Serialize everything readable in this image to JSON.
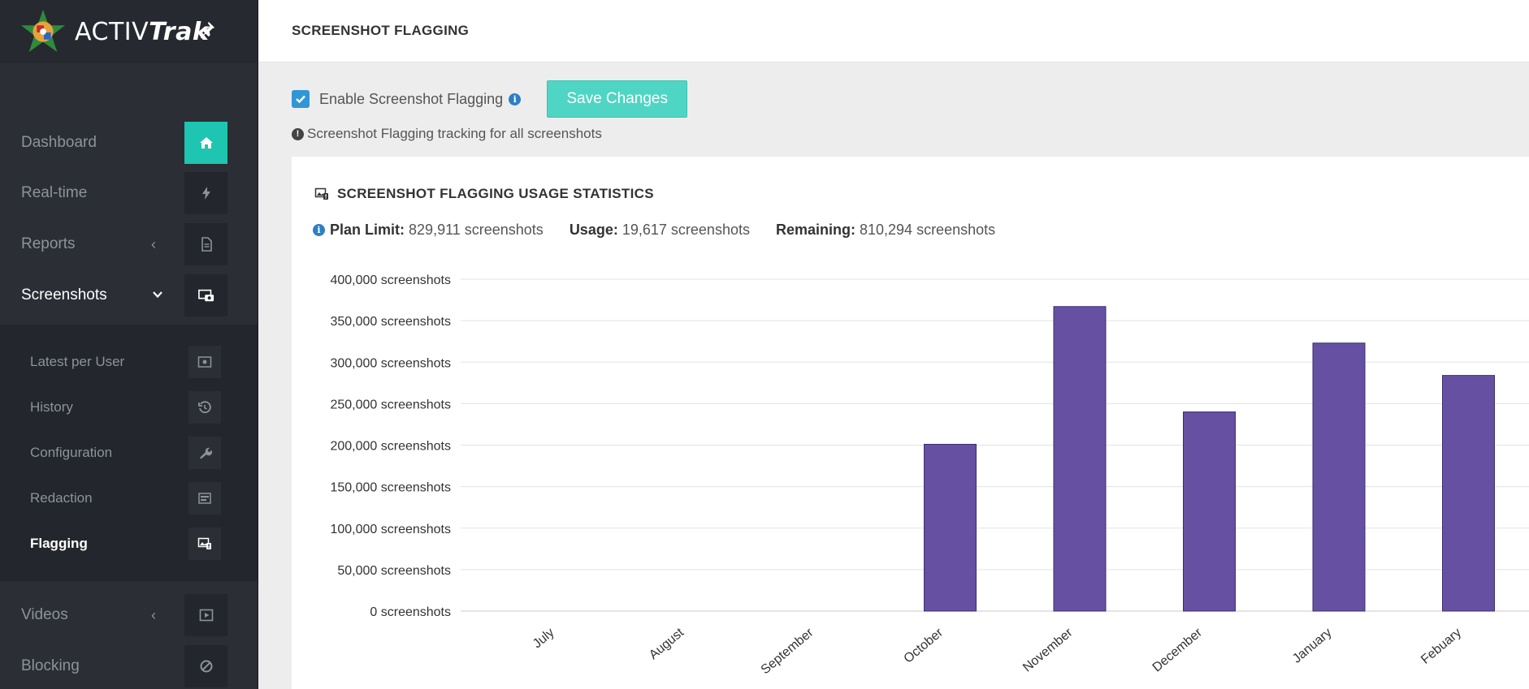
{
  "app": {
    "brand_plain": "ACTIV",
    "brand_italic": "Trak"
  },
  "sidebar": {
    "items": [
      {
        "label": "Dashboard",
        "icon": "home-icon"
      },
      {
        "label": "Real-time",
        "icon": "bolt-icon"
      },
      {
        "label": "Reports",
        "icon": "document-icon",
        "chevron": "‹"
      },
      {
        "label": "Screenshots",
        "icon": "screenshots-icon",
        "chevron": "⌄"
      },
      {
        "label": "Videos",
        "icon": "video-icon",
        "chevron": "‹"
      },
      {
        "label": "Blocking",
        "icon": "block-icon"
      }
    ],
    "sub_items": [
      {
        "label": "Latest per User",
        "icon": "image-icon"
      },
      {
        "label": "History",
        "icon": "history-icon"
      },
      {
        "label": "Configuration",
        "icon": "wrench-icon"
      },
      {
        "label": "Redaction",
        "icon": "redaction-icon"
      },
      {
        "label": "Flagging",
        "icon": "flagging-icon"
      }
    ]
  },
  "header": {
    "title": "SCREENSHOT FLAGGING"
  },
  "settings": {
    "enable_label": "Enable Screenshot Flagging",
    "enable_checked": true,
    "save_label": "Save Changes",
    "hint": "Screenshot Flagging tracking for all screenshots"
  },
  "usage": {
    "title": "SCREENSHOT FLAGGING USAGE STATISTICS",
    "plan_limit_label": "Plan Limit:",
    "plan_limit_value": "829,911 screenshots",
    "usage_label": "Usage:",
    "usage_value": "19,617 screenshots",
    "remaining_label": "Remaining:",
    "remaining_value": "810,294 screenshots"
  },
  "colors": {
    "accent": "#1ec5b0",
    "bar": "#6550a2",
    "sidebar": "#2b2e35",
    "checkbox": "#3196d6"
  },
  "chart_data": {
    "type": "bar",
    "categories": [
      "July",
      "August",
      "September",
      "October",
      "November",
      "December",
      "January",
      "Febuary"
    ],
    "values": [
      0,
      0,
      0,
      201000,
      367000,
      240000,
      323000,
      284000
    ],
    "y_tick_labels": [
      "0 screenshots",
      "50,000 screenshots",
      "100,000 screenshots",
      "150,000 screenshots",
      "200,000 screenshots",
      "250,000 screenshots",
      "300,000 screenshots",
      "350,000 screenshots",
      "400,000 screenshots"
    ],
    "ylim": [
      0,
      400000
    ],
    "grid": true,
    "color": "#6550a2"
  }
}
